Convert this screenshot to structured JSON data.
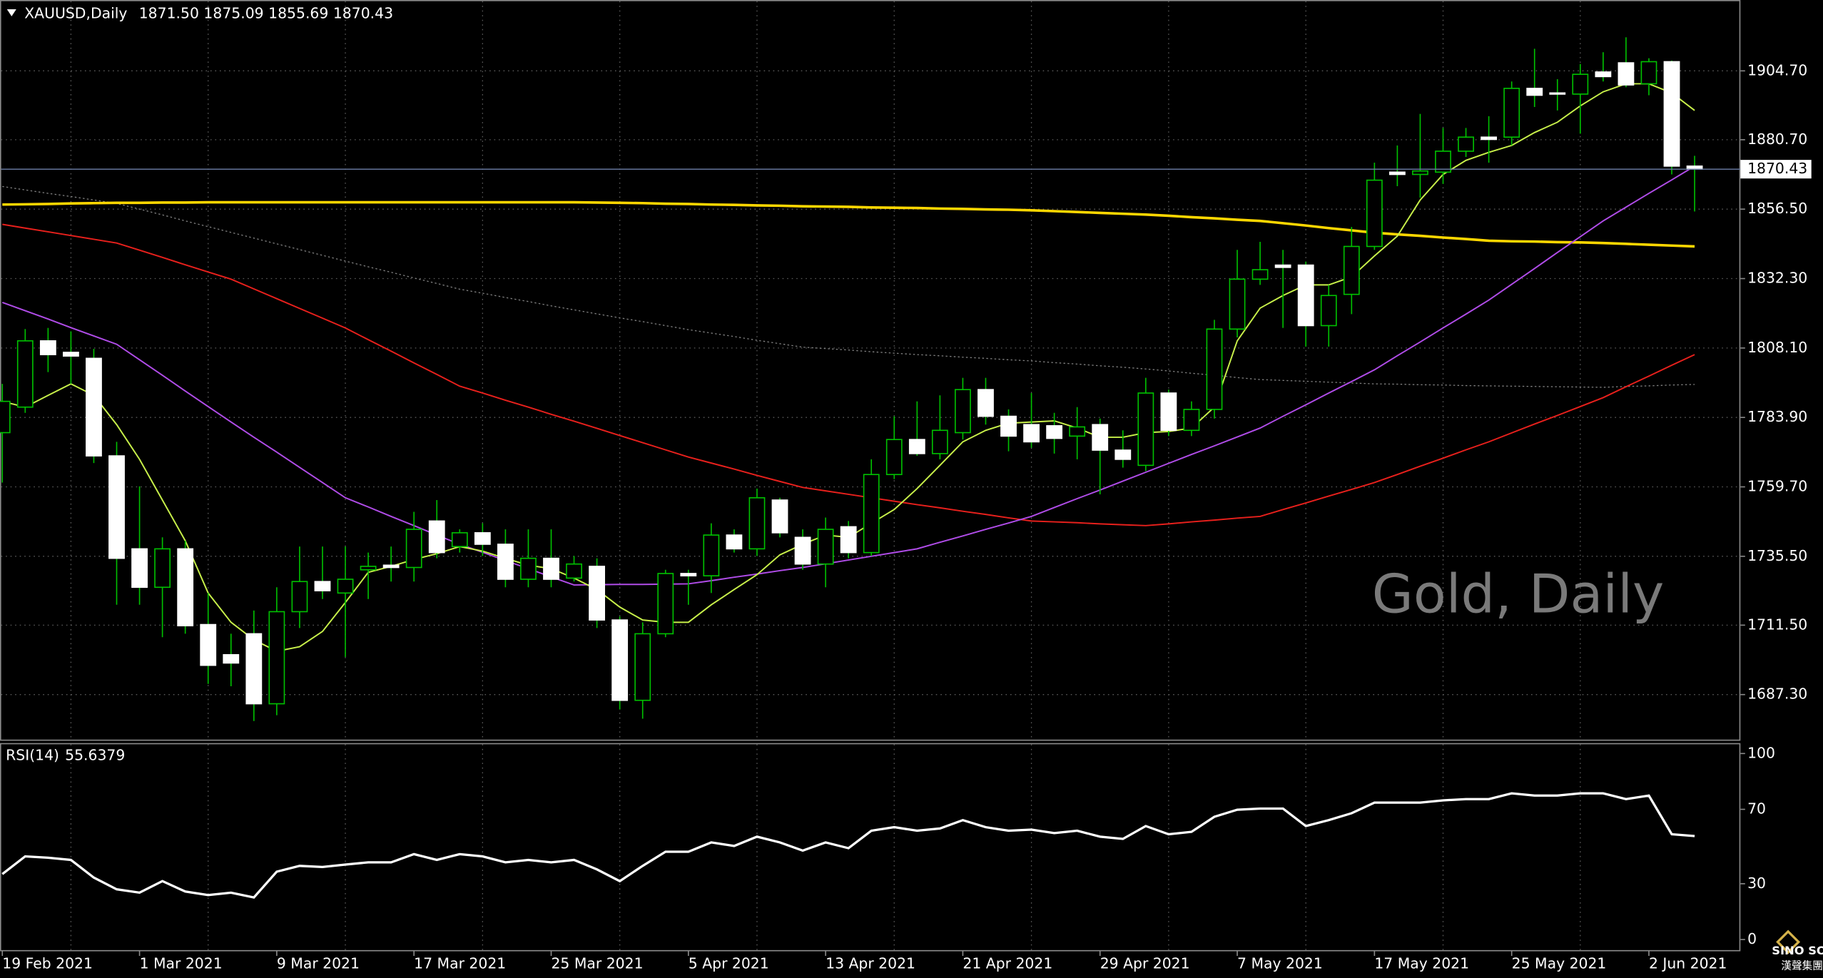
{
  "chart_data": {
    "type": "candlestick",
    "title": "XAUUSD,Daily",
    "last_bar_labels": [
      "1871.50",
      "1875.09",
      "1855.69",
      "1870.43"
    ],
    "watermark": "Gold, Daily",
    "categories": [
      "19 Feb 2021",
      null,
      null,
      null,
      null,
      null,
      "1 Mar 2021",
      null,
      null,
      null,
      null,
      null,
      "9 Mar 2021",
      null,
      null,
      null,
      null,
      null,
      "17 Mar 2021",
      null,
      null,
      null,
      null,
      null,
      "25 Mar 2021",
      null,
      null,
      null,
      null,
      null,
      "5 Apr 2021",
      null,
      null,
      null,
      null,
      null,
      "13 Apr 2021",
      null,
      null,
      null,
      null,
      null,
      "21 Apr 2021",
      null,
      null,
      null,
      null,
      null,
      "29 Apr 2021",
      null,
      null,
      null,
      null,
      null,
      "7 May 2021",
      null,
      null,
      null,
      null,
      null,
      "17 May 2021",
      null,
      null,
      null,
      null,
      null,
      "25 May 2021",
      null,
      null,
      null,
      null,
      null,
      "2 Jun 2021",
      null,
      null
    ],
    "open": [
      1778.6,
      1787.5,
      1810.6,
      1806.6,
      1804.5,
      1770.5,
      1738.1,
      1724.7,
      1738.1,
      1711.7,
      1701.2,
      1708.5,
      1684.1,
      1716.2,
      1726.7,
      1722.7,
      1730.8,
      1732.4,
      1731.6,
      1747.8,
      1738.9,
      1743.7,
      1739.7,
      1727.5,
      1734.8,
      1727.9,
      1732.0,
      1713.3,
      1685.3,
      1708.5,
      1729.5,
      1728.7,
      1742.9,
      1738.1,
      1755.1,
      1742.1,
      1732.8,
      1745.8,
      1736.8,
      1764.0,
      1776.2,
      1771.3,
      1778.6,
      1793.6,
      1784.3,
      1781.4,
      1781.0,
      1777.4,
      1781.4,
      1772.5,
      1767.2,
      1792.4,
      1779.4,
      1786.7,
      1814.7,
      1832.1,
      1837.0,
      1837.0,
      1815.9,
      1826.8,
      1843.5,
      1869.4,
      1868.6,
      1869.4,
      1876.7,
      1881.6,
      1881.6,
      1898.6,
      1897.0,
      1896.6,
      1904.3,
      1907.5,
      1900.2,
      1907.9,
      1871.5
    ],
    "high": [
      1795.6,
      1814.7,
      1815.1,
      1813.9,
      1807.8,
      1775.4,
      1759.9,
      1742.1,
      1740.9,
      1722.7,
      1708.5,
      1716.6,
      1724.7,
      1738.9,
      1738.9,
      1738.9,
      1736.8,
      1738.9,
      1751.0,
      1755.1,
      1744.9,
      1747.0,
      1744.9,
      1744.9,
      1744.9,
      1735.6,
      1734.8,
      1714.5,
      1712.5,
      1730.8,
      1730.8,
      1747.0,
      1744.9,
      1759.1,
      1755.9,
      1744.9,
      1749.0,
      1747.8,
      1769.3,
      1784.3,
      1789.5,
      1791.6,
      1797.7,
      1797.7,
      1786.7,
      1792.4,
      1785.5,
      1787.5,
      1783.5,
      1779.4,
      1797.7,
      1793.6,
      1789.5,
      1817.9,
      1842.3,
      1845.1,
      1842.3,
      1838.2,
      1830.1,
      1850.3,
      1872.7,
      1878.7,
      1889.7,
      1884.8,
      1884.8,
      1888.9,
      1901.0,
      1912.4,
      1901.8,
      1907.1,
      1911.2,
      1916.4,
      1909.1,
      1908.3,
      1875.09
    ],
    "low": [
      1761.2,
      1785.5,
      1799.7,
      1795.6,
      1768.0,
      1718.6,
      1718.6,
      1707.3,
      1708.5,
      1691.0,
      1690.2,
      1678.1,
      1680.1,
      1710.5,
      1720.6,
      1700.4,
      1720.6,
      1726.7,
      1726.7,
      1734.8,
      1736.8,
      1735.6,
      1724.7,
      1724.7,
      1724.7,
      1726.7,
      1710.5,
      1682.1,
      1678.9,
      1707.3,
      1718.6,
      1722.7,
      1736.8,
      1735.6,
      1742.1,
      1730.8,
      1724.7,
      1734.8,
      1735.6,
      1762.4,
      1770.5,
      1769.3,
      1776.2,
      1781.4,
      1772.1,
      1773.3,
      1771.3,
      1769.3,
      1757.1,
      1766.4,
      1765.2,
      1777.4,
      1777.4,
      1783.5,
      1811.8,
      1830.1,
      1815.1,
      1808.6,
      1808.6,
      1819.9,
      1842.3,
      1864.5,
      1860.5,
      1865.3,
      1874.7,
      1872.7,
      1878.7,
      1892.1,
      1890.9,
      1882.8,
      1901.0,
      1899.0,
      1896.2,
      1868.6,
      1855.69
    ],
    "close": [
      1789.5,
      1810.6,
      1805.8,
      1805.3,
      1770.5,
      1734.8,
      1724.7,
      1738.1,
      1711.3,
      1697.5,
      1698.3,
      1684.1,
      1716.2,
      1726.7,
      1723.5,
      1727.5,
      1732.0,
      1731.6,
      1744.9,
      1736.8,
      1743.7,
      1739.7,
      1727.5,
      1734.8,
      1727.5,
      1732.8,
      1713.3,
      1685.3,
      1708.5,
      1729.5,
      1728.7,
      1742.9,
      1738.1,
      1755.9,
      1743.7,
      1732.8,
      1744.9,
      1736.8,
      1764.0,
      1776.2,
      1771.3,
      1779.4,
      1793.6,
      1784.3,
      1777.4,
      1775.4,
      1776.6,
      1780.6,
      1772.5,
      1769.3,
      1792.4,
      1779.4,
      1786.7,
      1814.7,
      1832.1,
      1835.4,
      1836.2,
      1815.9,
      1826.4,
      1843.5,
      1866.6,
      1868.6,
      1869.8,
      1876.7,
      1881.6,
      1880.8,
      1898.6,
      1896.2,
      1896.6,
      1903.5,
      1902.7,
      1899.8,
      1907.9,
      1871.5,
      1870.43
    ],
    "up_color": "#000000",
    "down_color": "#ffffff",
    "wick_color": "#00c000",
    "ylim": [
      1671.2,
      1929.4
    ],
    "yticks": [
      {
        "value": 1687.3,
        "label": "1687.30"
      },
      {
        "value": 1711.5,
        "label": "1711.50"
      },
      {
        "value": 1735.5,
        "label": "1735.50"
      },
      {
        "value": 1759.7,
        "label": "1759.70"
      },
      {
        "value": 1783.9,
        "label": "1783.90"
      },
      {
        "value": 1808.1,
        "label": "1808.10"
      },
      {
        "value": 1832.3,
        "label": "1832.30"
      },
      {
        "value": 1856.5,
        "label": "1856.50"
      },
      {
        "value": 1880.7,
        "label": "1880.70"
      },
      {
        "value": 1904.7,
        "label": "1904.70"
      }
    ],
    "grid": true,
    "current_price": {
      "value": 1870.43,
      "label": "1870.43"
    },
    "moving_averages": [
      {
        "color": "#808080",
        "width": 0.8,
        "dash": "1.5,2",
        "values": [
          1864.4,
          1863.2,
          1862.0,
          1860.9,
          1859.7,
          1858.5,
          1856.5,
          1854.5,
          1852.4,
          1850.4,
          1848.4,
          1846.4,
          1844.4,
          1842.4,
          1840.4,
          1838.4,
          1836.4,
          1834.5,
          1832.5,
          1830.6,
          1828.6,
          1827.2,
          1825.7,
          1824.3,
          1822.8,
          1821.4,
          1820.0,
          1818.6,
          1817.3,
          1815.9,
          1814.5,
          1813.3,
          1812.1,
          1810.8,
          1809.6,
          1808.4,
          1807.9,
          1807.4,
          1806.8,
          1806.3,
          1805.8,
          1805.4,
          1804.9,
          1804.5,
          1804.0,
          1803.6,
          1803.0,
          1802.5,
          1801.9,
          1801.4,
          1800.8,
          1800.1,
          1799.3,
          1798.6,
          1797.8,
          1797.1,
          1796.8,
          1796.5,
          1796.2,
          1795.9,
          1795.6,
          1795.5,
          1795.3,
          1795.2,
          1795.0,
          1794.9,
          1794.8,
          1794.7,
          1794.6,
          1794.5,
          1794.4,
          1794.7,
          1794.9,
          1795.2,
          1795.4
        ]
      },
      {
        "color": "#ffd700",
        "width": 2.2,
        "dash": "",
        "values": [
          1858.1,
          1858.2,
          1858.3,
          1858.5,
          1858.6,
          1858.7,
          1858.7,
          1858.8,
          1858.8,
          1858.9,
          1858.9,
          1858.9,
          1858.9,
          1858.9,
          1858.9,
          1858.9,
          1858.9,
          1858.9,
          1858.9,
          1858.9,
          1858.9,
          1858.9,
          1858.9,
          1858.9,
          1858.9,
          1858.9,
          1858.8,
          1858.7,
          1858.6,
          1858.4,
          1858.3,
          1858.1,
          1858.0,
          1857.8,
          1857.7,
          1857.5,
          1857.4,
          1857.3,
          1857.1,
          1857.0,
          1856.9,
          1856.7,
          1856.6,
          1856.4,
          1856.3,
          1856.1,
          1855.8,
          1855.5,
          1855.2,
          1854.9,
          1854.6,
          1854.2,
          1853.7,
          1853.3,
          1852.8,
          1852.4,
          1851.6,
          1850.8,
          1849.9,
          1849.1,
          1848.3,
          1847.7,
          1847.2,
          1846.6,
          1846.1,
          1845.5,
          1845.3,
          1845.2,
          1845.0,
          1844.9,
          1844.7,
          1844.4,
          1844.1,
          1843.8,
          1843.5
        ]
      },
      {
        "color": "#e8201c",
        "width": 1.2,
        "dash": "",
        "values": [
          1851.2,
          1849.9,
          1848.6,
          1847.3,
          1846.0,
          1844.7,
          1842.2,
          1839.7,
          1837.1,
          1834.6,
          1832.1,
          1828.7,
          1825.3,
          1821.9,
          1818.5,
          1815.1,
          1811.0,
          1807.0,
          1802.9,
          1798.9,
          1794.8,
          1792.4,
          1789.9,
          1787.5,
          1785.0,
          1782.6,
          1780.1,
          1777.6,
          1775.1,
          1772.6,
          1770.1,
          1768.0,
          1765.9,
          1763.7,
          1761.6,
          1759.5,
          1758.3,
          1757.1,
          1755.9,
          1754.7,
          1753.5,
          1752.4,
          1751.2,
          1750.1,
          1748.9,
          1747.8,
          1747.5,
          1747.2,
          1746.8,
          1746.5,
          1746.2,
          1746.8,
          1747.5,
          1748.1,
          1748.8,
          1749.4,
          1751.8,
          1754.1,
          1756.5,
          1758.8,
          1761.2,
          1764.0,
          1766.9,
          1769.7,
          1772.6,
          1775.4,
          1778.5,
          1781.6,
          1784.6,
          1787.7,
          1790.8,
          1794.6,
          1798.3,
          1802.1,
          1805.8
        ]
      },
      {
        "color": "#b04ce8",
        "width": 1.2,
        "dash": "",
        "values": [
          1824.0,
          1821.1,
          1818.2,
          1815.2,
          1812.3,
          1809.4,
          1804.0,
          1798.6,
          1793.1,
          1787.7,
          1782.3,
          1777.0,
          1771.8,
          1766.5,
          1761.2,
          1755.9,
          1752.7,
          1749.4,
          1746.2,
          1742.9,
          1739.7,
          1736.9,
          1734.0,
          1731.2,
          1728.3,
          1725.5,
          1725.6,
          1725.7,
          1725.7,
          1725.8,
          1725.9,
          1727.0,
          1728.2,
          1729.3,
          1730.5,
          1731.6,
          1732.9,
          1734.2,
          1735.5,
          1736.8,
          1738.1,
          1740.4,
          1742.6,
          1744.9,
          1747.1,
          1749.4,
          1752.5,
          1755.6,
          1758.6,
          1761.7,
          1764.8,
          1767.9,
          1771.0,
          1774.0,
          1777.1,
          1780.2,
          1784.3,
          1788.3,
          1792.4,
          1796.4,
          1800.5,
          1805.4,
          1810.2,
          1815.1,
          1819.9,
          1824.8,
          1830.3,
          1835.8,
          1841.4,
          1846.9,
          1852.4,
          1857.2,
          1862.0,
          1866.7,
          1871.5
        ]
      },
      {
        "color": "#c8f04a",
        "width": 1.2,
        "dash": "",
        "values": [
          1789.5,
          1787.5,
          1791.6,
          1795.6,
          1791.6,
          1781.4,
          1769.3,
          1755.1,
          1740.9,
          1722.7,
          1712.5,
          1706.4,
          1702.4,
          1704.0,
          1709.3,
          1719.4,
          1729.9,
          1732.0,
          1734.4,
          1736.4,
          1738.9,
          1737.3,
          1734.8,
          1732.4,
          1731.2,
          1727.9,
          1723.9,
          1717.8,
          1713.3,
          1712.5,
          1712.5,
          1718.6,
          1723.9,
          1729.1,
          1736.0,
          1739.7,
          1742.9,
          1742.1,
          1747.0,
          1751.8,
          1759.1,
          1767.2,
          1775.4,
          1779.4,
          1781.9,
          1782.3,
          1782.7,
          1780.2,
          1777.0,
          1777.0,
          1778.6,
          1779.0,
          1780.2,
          1787.5,
          1810.6,
          1822.0,
          1826.4,
          1830.1,
          1830.1,
          1832.9,
          1840.2,
          1847.1,
          1859.7,
          1868.6,
          1873.5,
          1876.3,
          1878.7,
          1883.2,
          1886.8,
          1892.5,
          1897.4,
          1900.2,
          1900.2,
          1897.0,
          1890.9
        ]
      }
    ],
    "rsi": {
      "name": "RSI(14)",
      "current_label": "55.6379",
      "color": "#ffffff",
      "ylim": [
        -6.3,
        105.6
      ],
      "yticks": [
        0,
        30,
        70,
        100
      ],
      "values": [
        35.2,
        44.7,
        44.0,
        42.8,
        33.3,
        27.0,
        25.2,
        31.4,
        25.8,
        23.9,
        25.2,
        22.6,
        36.5,
        39.6,
        39.0,
        40.3,
        41.5,
        41.5,
        45.9,
        42.8,
        45.9,
        44.7,
        41.5,
        42.8,
        41.5,
        42.8,
        37.7,
        31.4,
        39.6,
        47.2,
        47.2,
        52.2,
        50.3,
        55.3,
        52.2,
        47.8,
        52.2,
        49.1,
        58.5,
        60.4,
        58.5,
        59.7,
        64.2,
        60.4,
        58.5,
        59.1,
        57.2,
        58.5,
        55.3,
        54.1,
        61.0,
        56.6,
        57.9,
        66.0,
        69.8,
        70.4,
        70.4,
        61.0,
        64.2,
        67.9,
        73.6,
        73.6,
        73.6,
        74.8,
        75.5,
        75.5,
        78.6,
        77.4,
        77.4,
        78.6,
        78.6,
        75.5,
        77.4,
        56.6,
        55.6379
      ]
    }
  },
  "logo": {
    "name": "SINO SOUND",
    "subtitle": "漢聲集團"
  }
}
